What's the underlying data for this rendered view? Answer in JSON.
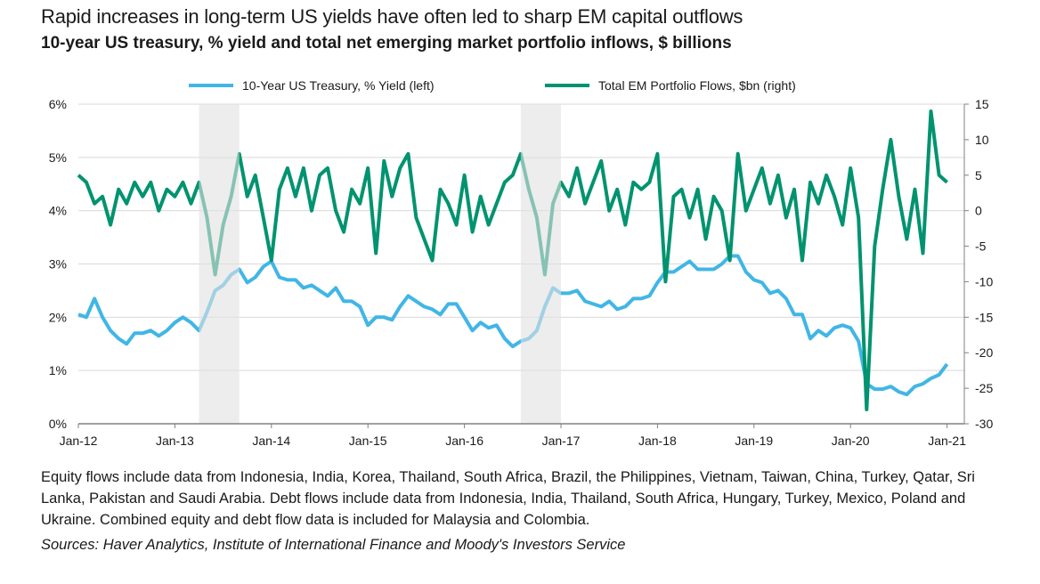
{
  "title": "Rapid increases in long-term US yields have often led to sharp EM capital outflows",
  "subtitle": "10-year US treasury, % yield and total net emerging market portfolio inflows, $ billions",
  "footnote": "Equity flows include data from Indonesia, India, Korea, Thailand, South Africa, Brazil, the Philippines, Vietnam, Taiwan, China, Turkey, Qatar, Sri Lanka, Pakistan and Saudi Arabia. Debt flows include data from Indonesia, India, Thailand, South Africa, Hungary, Turkey, Mexico, Poland and Ukraine. Combined equity and debt flow data is included for Malaysia and Colombia.",
  "sources": "Sources: Haver Analytics, Institute of International Finance and Moody's Investors Service",
  "chart_data": {
    "type": "line",
    "title": "Rapid increases in long-term US yields have often led to sharp EM capital outflows",
    "legend_position": "top",
    "grid": true,
    "x_ticks": [
      "Jan-12",
      "Jan-13",
      "Jan-14",
      "Jan-15",
      "Jan-16",
      "Jan-17",
      "Jan-18",
      "Jan-19",
      "Jan-20",
      "Jan-21"
    ],
    "y_left": {
      "ticks": [
        "0%",
        "1%",
        "2%",
        "3%",
        "4%",
        "5%",
        "6%"
      ],
      "range": [
        0,
        6
      ]
    },
    "y_right": {
      "ticks": [
        "-30",
        "-25",
        "-20",
        "-15",
        "-10",
        "-5",
        "0",
        "5",
        "10",
        "15"
      ],
      "range": [
        -30,
        15
      ]
    },
    "shaded_periods": [
      [
        "2013-04",
        "2013-09"
      ],
      [
        "2016-08",
        "2017-01"
      ]
    ],
    "series": [
      {
        "name": "10-Year US Treasury, % Yield (left)",
        "axis": "left",
        "color": "#41b6e6",
        "dates_start": "2012-01",
        "values": [
          2.05,
          2.0,
          2.35,
          2.0,
          1.75,
          1.6,
          1.5,
          1.7,
          1.7,
          1.75,
          1.65,
          1.75,
          1.9,
          2.0,
          1.9,
          1.75,
          2.1,
          2.5,
          2.6,
          2.8,
          2.9,
          2.65,
          2.75,
          2.95,
          3.05,
          2.75,
          2.7,
          2.7,
          2.55,
          2.6,
          2.5,
          2.4,
          2.55,
          2.3,
          2.3,
          2.2,
          1.85,
          2.0,
          2.0,
          1.95,
          2.2,
          2.4,
          2.3,
          2.2,
          2.15,
          2.05,
          2.25,
          2.25,
          2.0,
          1.75,
          1.9,
          1.8,
          1.85,
          1.6,
          1.45,
          1.55,
          1.6,
          1.75,
          2.2,
          2.55,
          2.45,
          2.45,
          2.5,
          2.3,
          2.25,
          2.2,
          2.3,
          2.15,
          2.2,
          2.35,
          2.35,
          2.4,
          2.65,
          2.85,
          2.85,
          2.95,
          3.05,
          2.9,
          2.9,
          2.9,
          3.0,
          3.15,
          3.15,
          2.85,
          2.7,
          2.65,
          2.45,
          2.5,
          2.35,
          2.05,
          2.05,
          1.6,
          1.75,
          1.65,
          1.8,
          1.85,
          1.8,
          1.55,
          0.75,
          0.65,
          0.65,
          0.7,
          0.6,
          0.55,
          0.7,
          0.75,
          0.85,
          0.92,
          1.12
        ]
      },
      {
        "name": "Total EM Portfolio Flows, $bn (right)",
        "axis": "right",
        "color": "#00936f",
        "dates_start": "2012-01",
        "values": [
          5,
          4,
          1,
          2,
          -2,
          3,
          1,
          4,
          2,
          4,
          0,
          3,
          2,
          4,
          1,
          4,
          -1,
          -9,
          -2,
          2,
          8,
          2,
          5,
          -1,
          -7,
          3,
          6,
          2,
          6,
          0,
          5,
          6,
          0,
          -3,
          3,
          1,
          6,
          -6,
          7,
          2,
          6,
          8,
          -1,
          -4,
          -7,
          3,
          1,
          -2,
          5,
          -3,
          2,
          -2,
          1,
          4,
          5,
          8,
          3,
          -1,
          -9,
          1,
          4,
          2,
          6,
          1,
          4,
          7,
          0,
          3,
          -2,
          4,
          3,
          4,
          8,
          -10,
          2,
          3,
          -1,
          3,
          -4,
          2,
          0,
          -7,
          8,
          0,
          3,
          6,
          1,
          5,
          -1,
          3,
          -7,
          4,
          1,
          5,
          2,
          -2,
          6,
          -1,
          -28,
          -5,
          3,
          10,
          2,
          -4,
          3,
          -6,
          14,
          5,
          4
        ]
      }
    ]
  }
}
